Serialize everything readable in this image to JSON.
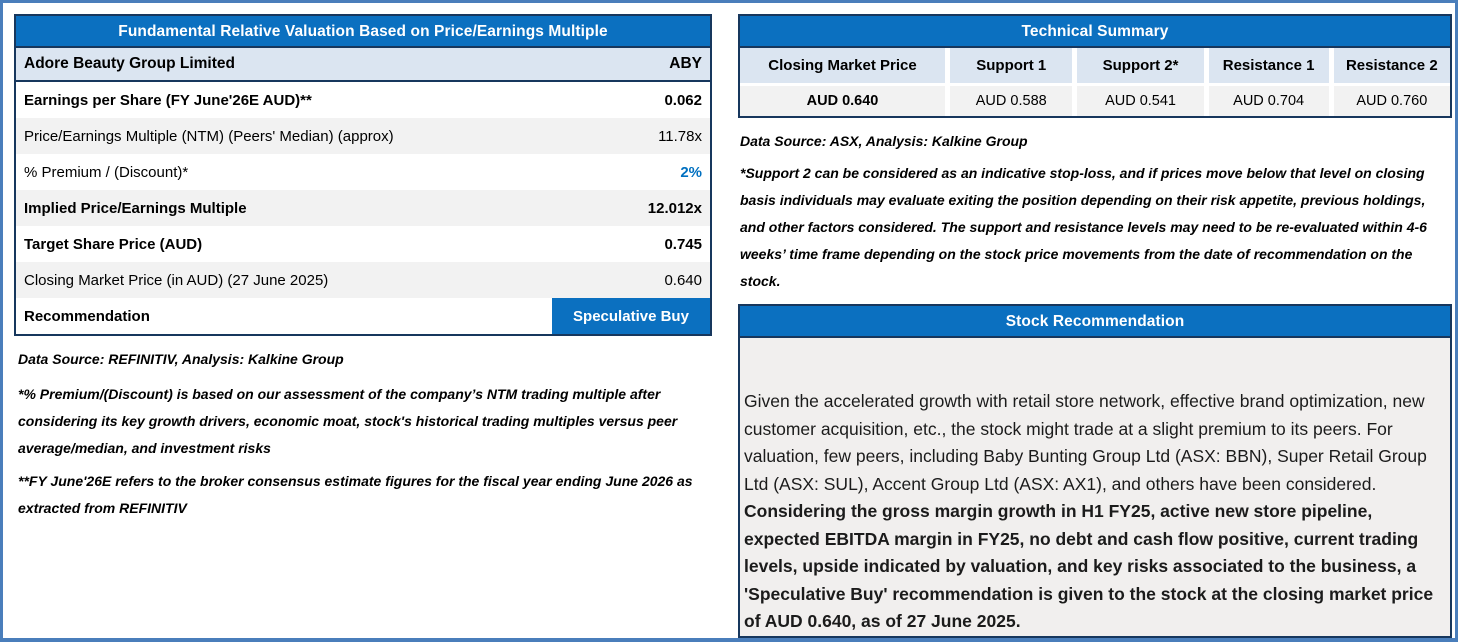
{
  "valuation_table": {
    "title": "Fundamental Relative Valuation Based on Price/Earnings Multiple",
    "company_row": {
      "label": "Adore Beauty Group Limited",
      "value": "ABY"
    },
    "rows": [
      {
        "label": "Earnings per Share (FY June'26E AUD)**",
        "value": "0.062"
      },
      {
        "label": "Price/Earnings Multiple (NTM)  (Peers' Median) (approx)",
        "value": "11.78x"
      },
      {
        "label": "% Premium / (Discount)*",
        "value": "2%"
      },
      {
        "label": "Implied Price/Earnings Multiple",
        "value": "12.012x"
      },
      {
        "label": "Target Share Price (AUD)",
        "value": "0.745"
      },
      {
        "label": "Closing Market Price (in AUD) (27 June 2025)",
        "value": "0.640"
      },
      {
        "label": "Recommendation",
        "value": "Speculative Buy"
      }
    ],
    "source_note": "Data Source: REFINITIV, Analysis: Kalkine Group",
    "premium_note": "*% Premium/(Discount) is based on our assessment of the company’s NTM trading multiple after considering its key growth drivers, economic moat, stock's historical trading multiples versus peer average/median, and investment risks",
    "fy_note": "**FY June'26E refers to the broker consensus estimate figures for the fiscal year ending June 2026  as extracted from REFINITIV"
  },
  "technical_summary": {
    "title": "Technical Summary",
    "columns": [
      {
        "header": "Closing Market Price",
        "value": "AUD 0.640"
      },
      {
        "header": "Support 1",
        "value": "AUD 0.588"
      },
      {
        "header": "Support 2*",
        "value": "AUD 0.541"
      },
      {
        "header": "Resistance 1",
        "value": "AUD 0.704"
      },
      {
        "header": "Resistance 2",
        "value": "AUD 0.760"
      }
    ],
    "source_note": "Data Source: ASX, Analysis: Kalkine Group",
    "support_note": "*Support 2 can be considered as an indicative stop-loss, and if prices move below that level on closing basis individuals may evaluate exiting the position depending on their risk appetite, previous holdings, and other factors considered. The support and resistance levels may need to be re-evaluated within 4-6 weeks’ time frame depending on the stock price movements from the date of recommendation on the stock."
  },
  "stock_recommendation": {
    "title": "Stock Recommendation",
    "body_regular": "Given the accelerated growth with retail store network, effective brand optimization, new customer acquisition, etc., the stock might trade at a slight premium to its peers. For valuation, few peers, including Baby Bunting Group Ltd (ASX: BBN), Super Retail Group Ltd (ASX: SUL), Accent Group Ltd (ASX: AX1), and others have been considered. ",
    "body_bold": "Considering the gross margin growth in H1 FY25, active new store pipeline, expected EBITDA margin in FY25, no debt and cash flow positive, current trading levels, upside indicated by valuation, and key risks associated to the business, a 'Speculative Buy' recommendation is given to the stock at the closing market price of AUD 0.640, as of 27 June 2025."
  },
  "colors": {
    "header_blue": "#0b70c0",
    "navy_border": "#17375d",
    "frame_blue": "#4a7ebb",
    "row_light_blue": "#dbe5f1",
    "row_gray": "#f2f2f2",
    "premium_value_blue": "#0070c0"
  }
}
